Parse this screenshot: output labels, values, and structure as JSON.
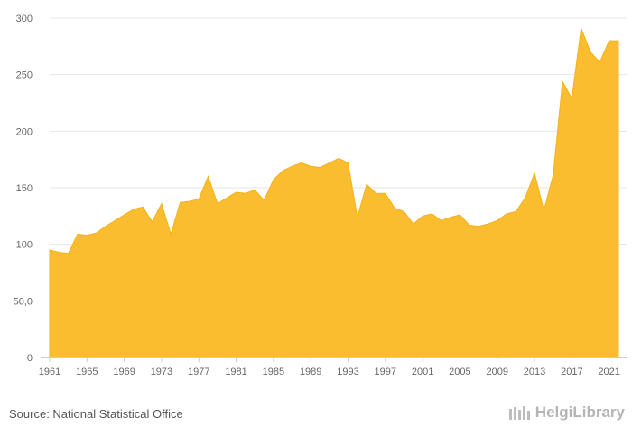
{
  "source_text": "Source: National Statistical Office",
  "brand_text": "HelgiLibrary",
  "colors": {
    "area": "#fabd2f",
    "grid": "#e6e6e6",
    "axis": "#cccccc"
  },
  "chart_data": {
    "type": "area",
    "title": "",
    "xlabel": "",
    "ylabel": "",
    "x": [
      1961,
      1962,
      1963,
      1964,
      1965,
      1966,
      1967,
      1968,
      1969,
      1970,
      1971,
      1972,
      1973,
      1974,
      1975,
      1976,
      1977,
      1978,
      1979,
      1980,
      1981,
      1982,
      1983,
      1984,
      1985,
      1986,
      1987,
      1988,
      1989,
      1990,
      1991,
      1992,
      1993,
      1994,
      1995,
      1996,
      1997,
      1998,
      1999,
      2000,
      2001,
      2002,
      2003,
      2004,
      2005,
      2006,
      2007,
      2008,
      2009,
      2010,
      2011,
      2012,
      2013,
      2014,
      2015,
      2016,
      2017,
      2018,
      2019,
      2020,
      2021,
      2022
    ],
    "values": [
      95,
      93,
      92,
      109,
      108,
      110,
      116,
      121,
      126,
      131,
      133,
      120,
      136,
      109,
      137,
      138,
      140,
      160,
      136,
      141,
      146,
      145,
      148,
      139,
      157,
      165,
      169,
      172,
      169,
      168,
      172,
      176,
      172,
      124,
      153,
      145,
      145,
      132,
      129,
      118,
      125,
      127,
      121,
      124,
      126,
      117,
      116,
      118,
      121,
      127,
      129,
      141,
      163,
      130,
      161,
      244,
      229,
      291,
      270,
      261,
      280,
      280
    ],
    "ylim": [
      0,
      300
    ],
    "yticks": [
      0,
      50,
      100,
      150,
      200,
      250,
      300
    ],
    "ytick_labels": [
      "0",
      "50,0",
      "100",
      "150",
      "200",
      "250",
      "300"
    ],
    "xticks": [
      1961,
      1965,
      1969,
      1973,
      1977,
      1981,
      1985,
      1989,
      1993,
      1997,
      2001,
      2005,
      2009,
      2013,
      2017,
      2021
    ],
    "grid": true,
    "legend": "none"
  }
}
